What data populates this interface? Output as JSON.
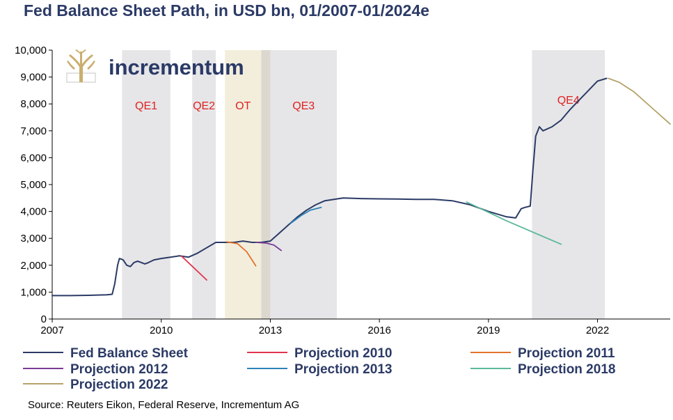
{
  "chart_data": {
    "type": "line",
    "title": "Fed Balance Sheet Path, in USD bn, 01/2007-01/2024e",
    "source": "Source: Reuters Eikon, Federal Reserve, Incrementum AG",
    "logo_text": "incrementum",
    "xlim": [
      2007.0,
      2024.0
    ],
    "ylim": [
      0,
      10000
    ],
    "x_ticks": [
      {
        "value": 2007,
        "label": "2007"
      },
      {
        "value": 2010,
        "label": "2010"
      },
      {
        "value": 2013,
        "label": "2013"
      },
      {
        "value": 2016,
        "label": "2016"
      },
      {
        "value": 2019,
        "label": "2019"
      },
      {
        "value": 2022,
        "label": "2022"
      }
    ],
    "y_ticks": [
      {
        "value": 0,
        "label": "0"
      },
      {
        "value": 1000,
        "label": "1,000"
      },
      {
        "value": 2000,
        "label": "2,000"
      },
      {
        "value": 3000,
        "label": "3,000"
      },
      {
        "value": 4000,
        "label": "4,000"
      },
      {
        "value": 5000,
        "label": "5,000"
      },
      {
        "value": 6000,
        "label": "6,000"
      },
      {
        "value": 7000,
        "label": "7,000"
      },
      {
        "value": 8000,
        "label": "8,000"
      },
      {
        "value": 9000,
        "label": "9,000"
      },
      {
        "value": 10000,
        "label": "10,000"
      }
    ],
    "bands": [
      {
        "label": "QE1",
        "start": 2008.92,
        "end": 2010.25,
        "color": "#e6e6e8",
        "label_y": 7800
      },
      {
        "label": "QE2",
        "start": 2010.85,
        "end": 2011.5,
        "color": "#e6e6e8",
        "label_y": 7800
      },
      {
        "label": "OT",
        "start": 2011.75,
        "end": 2012.75,
        "color": "#f3eedc",
        "label_y": 7800
      },
      {
        "label": "",
        "start": 2012.75,
        "end": 2013.0,
        "color": "#dcd8cf",
        "label_y": 0
      },
      {
        "label": "QE3",
        "start": 2013.0,
        "end": 2014.83,
        "color": "#e6e6e8",
        "label_y": 7800
      },
      {
        "label": "QE4",
        "start": 2020.2,
        "end": 2022.2,
        "color": "#e6e6e8",
        "label_y": 8000
      }
    ],
    "series": [
      {
        "name": "Fed Balance Sheet",
        "color": "#2b3a66",
        "x": [
          2007.0,
          2007.5,
          2008.0,
          2008.5,
          2008.65,
          2008.72,
          2008.8,
          2008.85,
          2008.95,
          2009.05,
          2009.15,
          2009.25,
          2009.35,
          2009.45,
          2009.55,
          2009.65,
          2009.8,
          2010.0,
          2010.25,
          2010.5,
          2010.75,
          2011.0,
          2011.25,
          2011.5,
          2011.75,
          2012.0,
          2012.25,
          2012.5,
          2012.75,
          2013.0,
          2013.25,
          2013.5,
          2013.75,
          2014.0,
          2014.25,
          2014.5,
          2014.75,
          2015.0,
          2015.5,
          2016.0,
          2016.5,
          2017.0,
          2017.5,
          2018.0,
          2018.5,
          2019.0,
          2019.5,
          2019.75,
          2019.9,
          2020.0,
          2020.15,
          2020.22,
          2020.3,
          2020.4,
          2020.5,
          2020.75,
          2021.0,
          2021.25,
          2021.5,
          2021.75,
          2022.0,
          2022.25
        ],
        "y": [
          870,
          870,
          880,
          900,
          920,
          1300,
          2000,
          2250,
          2200,
          2000,
          1950,
          2100,
          2150,
          2100,
          2050,
          2100,
          2200,
          2250,
          2300,
          2350,
          2300,
          2450,
          2650,
          2850,
          2850,
          2850,
          2900,
          2850,
          2850,
          2900,
          3200,
          3500,
          3800,
          4050,
          4250,
          4400,
          4450,
          4500,
          4480,
          4470,
          4460,
          4450,
          4450,
          4400,
          4250,
          4000,
          3800,
          3760,
          4100,
          4150,
          4200,
          5500,
          6800,
          7150,
          7000,
          7150,
          7400,
          7800,
          8150,
          8500,
          8850,
          8950
        ]
      },
      {
        "name": "Projection 2010",
        "color": "#e0344f",
        "x": [
          2010.55,
          2011.25
        ],
        "y": [
          2350,
          1450
        ]
      },
      {
        "name": "Projection 2011",
        "color": "#e3722b",
        "x": [
          2011.8,
          2012.1,
          2012.35,
          2012.6
        ],
        "y": [
          2870,
          2800,
          2500,
          1980
        ]
      },
      {
        "name": "Projection 2012",
        "color": "#7a3b96",
        "x": [
          2012.6,
          2012.9,
          2013.1,
          2013.3
        ],
        "y": [
          2850,
          2820,
          2750,
          2550
        ]
      },
      {
        "name": "Projection 2013",
        "color": "#2a82b8",
        "x": [
          2013.55,
          2013.85,
          2014.1,
          2014.4
        ],
        "y": [
          3550,
          3850,
          4050,
          4150
        ]
      },
      {
        "name": "Projection 2018",
        "color": "#5bb89a",
        "x": [
          2018.4,
          2019.5,
          2021.0
        ],
        "y": [
          4350,
          3650,
          2780
        ]
      },
      {
        "name": "Projection 2022",
        "color": "#b5a26a",
        "x": [
          2022.3,
          2022.6,
          2023.0,
          2023.5,
          2024.0
        ],
        "y": [
          8950,
          8800,
          8450,
          7850,
          7250
        ]
      }
    ],
    "legend": [
      {
        "label": "Fed Balance Sheet",
        "color": "#2b3a66"
      },
      {
        "label": "Projection 2010",
        "color": "#e0344f"
      },
      {
        "label": "Projection 2011",
        "color": "#e3722b"
      },
      {
        "label": "Projection 2012",
        "color": "#7a3b96"
      },
      {
        "label": "Projection 2013",
        "color": "#2a82b8"
      },
      {
        "label": "Projection 2018",
        "color": "#5bb89a"
      },
      {
        "label": "Projection 2022",
        "color": "#b5a26a"
      }
    ]
  }
}
